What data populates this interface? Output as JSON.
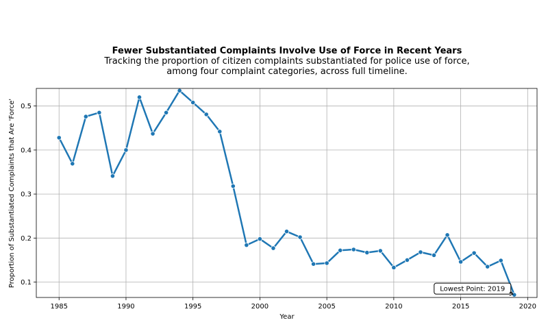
{
  "chart_data": {
    "type": "line",
    "title": "Fewer Substantiated Complaints Involve Use of Force in Recent Years",
    "subtitle_lines": [
      "Tracking the proportion of citizen complaints substantiated for police use of force,",
      "among four complaint categories, across full timeline."
    ],
    "xlabel": "Year",
    "ylabel": "Proportion of Substantiated Complaints that Are 'Force'",
    "xlim": [
      1983.3,
      2020.7
    ],
    "ylim": [
      0.065,
      0.54
    ],
    "xticks": [
      1985,
      1990,
      1995,
      2000,
      2005,
      2010,
      2015,
      2020
    ],
    "yticks": [
      0.1,
      0.2,
      0.3,
      0.4,
      0.5
    ],
    "grid": true,
    "line_color": "#1f77b4",
    "x": [
      1985,
      1986,
      1987,
      1988,
      1989,
      1990,
      1991,
      1992,
      1993,
      1994,
      1995,
      1996,
      1997,
      1998,
      1999,
      2000,
      2001,
      2002,
      2003,
      2004,
      2005,
      2006,
      2007,
      2008,
      2009,
      2010,
      2011,
      2012,
      2013,
      2014,
      2015,
      2016,
      2017,
      2018,
      2019
    ],
    "y": [
      0.428,
      0.369,
      0.476,
      0.485,
      0.341,
      0.4,
      0.52,
      0.437,
      0.485,
      0.535,
      0.508,
      0.481,
      0.442,
      0.318,
      0.184,
      0.198,
      0.177,
      0.215,
      0.202,
      0.141,
      0.143,
      0.172,
      0.174,
      0.167,
      0.171,
      0.133,
      0.15,
      0.168,
      0.161,
      0.207,
      0.146,
      0.166,
      0.135,
      0.149,
      0.071
    ],
    "annotation": {
      "text": "Lowest Point: 2019",
      "x": 2019,
      "y": 0.071
    }
  }
}
